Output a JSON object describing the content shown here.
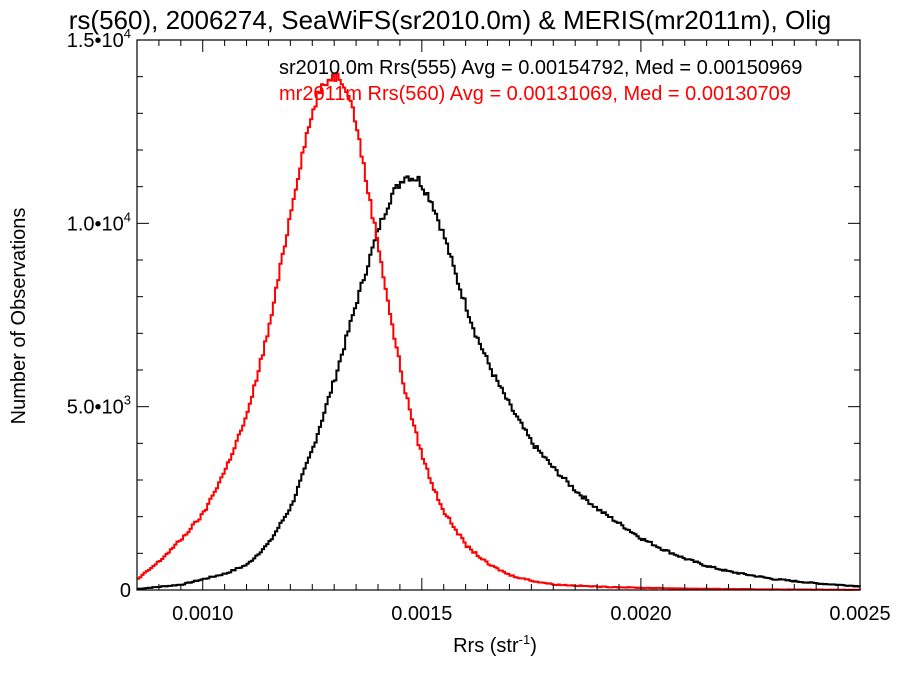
{
  "chart_data": {
    "type": "line",
    "title": "rs(560), 2006274, SeaWiFS(sr2010.0m) & MERIS(mr2011m), Olig",
    "xlabel": "Rrs (str",
    "xlabel_sup": "-1",
    "xlabel_close": ")",
    "ylabel": "Number of Observations",
    "xlim": [
      0.00085,
      0.0025
    ],
    "ylim": [
      0,
      15000
    ],
    "xticks": [
      {
        "value": 0.001,
        "label": "0.0010"
      },
      {
        "value": 0.0015,
        "label": "0.0015"
      },
      {
        "value": 0.002,
        "label": "0.0020"
      },
      {
        "value": 0.0025,
        "label": "0.0025"
      }
    ],
    "yticks": [
      {
        "value": 0,
        "label": "0"
      },
      {
        "value": 5000,
        "mantissa": "5.0•10",
        "exp": "3"
      },
      {
        "value": 10000,
        "mantissa": "1.0•10",
        "exp": "4"
      },
      {
        "value": 15000,
        "mantissa": "1.5•10",
        "exp": "4"
      }
    ],
    "step": 5e-06,
    "series": [
      {
        "name": "sr2010.0m Rrs(555)",
        "color": "#000000",
        "annotation": "sr2010.0m Rrs(555) Avg = 0.00154792, Med = 0.00150969",
        "x": [
          0.00085,
          0.00095,
          0.00105,
          0.0011,
          0.00115,
          0.0012,
          0.00125,
          0.0013,
          0.00135,
          0.0014,
          0.00143,
          0.00146,
          0.00149,
          0.00152,
          0.00155,
          0.00158,
          0.00162,
          0.00166,
          0.0017,
          0.00175,
          0.0018,
          0.00185,
          0.0019,
          0.00195,
          0.002,
          0.00205,
          0.0021,
          0.00215,
          0.0022,
          0.0023,
          0.0024,
          0.0025
        ],
        "y": [
          30,
          150,
          450,
          700,
          1300,
          2300,
          3900,
          5800,
          7900,
          9900,
          10800,
          11300,
          11200,
          10600,
          9600,
          8400,
          7000,
          5900,
          5000,
          4000,
          3300,
          2700,
          2200,
          1800,
          1400,
          1100,
          850,
          650,
          500,
          300,
          180,
          100
        ]
      },
      {
        "name": "mr2011m Rrs(560)",
        "color": "#ff0000",
        "annotation": "mr2011m Rrs(560) Avg = 0.00131069, Med = 0.00130709",
        "x": [
          0.00085,
          0.0009,
          0.00095,
          0.001,
          0.00105,
          0.0011,
          0.00115,
          0.0012,
          0.00123,
          0.00126,
          0.00129,
          0.00131,
          0.00133,
          0.00135,
          0.00137,
          0.0014,
          0.00143,
          0.00146,
          0.00149,
          0.00152,
          0.00155,
          0.0016,
          0.00165,
          0.0017,
          0.00175,
          0.0018,
          0.0019,
          0.002,
          0.0021,
          0.0022,
          0.0023,
          0.0024,
          0.0025
        ],
        "y": [
          300,
          800,
          1400,
          2100,
          3300,
          4800,
          7200,
          10400,
          12200,
          13500,
          14000,
          14000,
          13600,
          12600,
          11200,
          9300,
          7200,
          5400,
          4000,
          2900,
          2100,
          1200,
          700,
          400,
          250,
          150,
          90,
          60,
          40,
          25,
          15,
          10,
          5
        ]
      }
    ]
  }
}
